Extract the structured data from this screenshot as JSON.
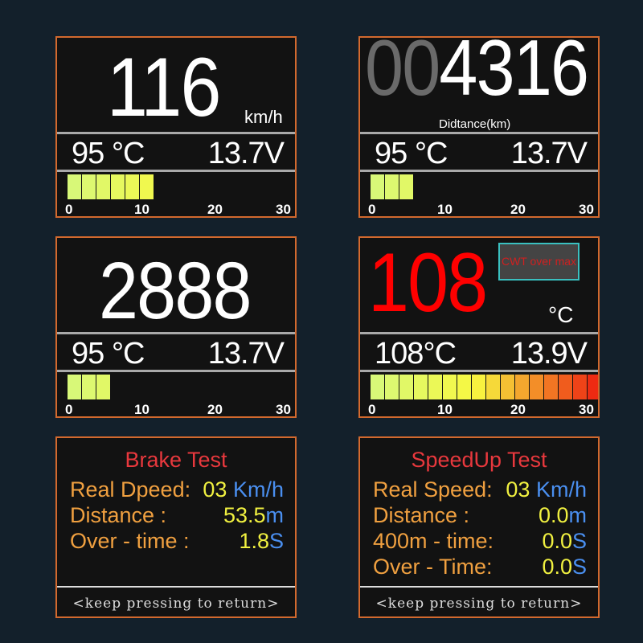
{
  "panels": [
    {
      "main": "116",
      "unit": "km/h",
      "temp": "95 °C",
      "volt": "13.7V",
      "bar_value": 6,
      "bar_segments_max": 16,
      "ticks": [
        "0",
        "10",
        "20",
        "30"
      ]
    },
    {
      "main_dim": "00",
      "main": "4316",
      "unit": "Didtance(km)",
      "temp": "95 °C",
      "volt": "13.7V",
      "bar_value": 3,
      "ticks": [
        "0",
        "10",
        "20",
        "30"
      ]
    },
    {
      "main": "2888",
      "temp": "95 °C",
      "volt": "13.7V",
      "bar_value": 3,
      "ticks": [
        "0",
        "10",
        "20",
        "30"
      ]
    },
    {
      "main": "108",
      "unit": "°C",
      "warning": "CWT over max",
      "temp": "108°C",
      "volt": "13.9V",
      "bar_value": 16,
      "ticks": [
        "0",
        "10",
        "20",
        "30"
      ]
    }
  ],
  "brake": {
    "title": "Brake Test",
    "rows": [
      {
        "label": "Real Dpeed:",
        "value": "03",
        "unit": "Km/h"
      },
      {
        "label": "Distance    :",
        "value": "53.5",
        "unit": "m"
      },
      {
        "label": "Over - time :",
        "value": "1.8",
        "unit": "S"
      }
    ],
    "footer": "<keep pressing to return>"
  },
  "speedup": {
    "title": "SpeedUp Test",
    "rows": [
      {
        "label": "Real Speed:",
        "value": "03",
        "unit": "Km/h"
      },
      {
        "label": "Distance    :",
        "value": "0.0",
        "unit": "m"
      },
      {
        "label": "400m - time:",
        "value": "0.0",
        "unit": "S"
      },
      {
        "label": "Over - Time:",
        "value": "0.0",
        "unit": "S"
      }
    ],
    "footer": "<keep pressing to return>"
  },
  "colors": {
    "frame": "#d2692e",
    "bar_start": "#d8f878",
    "bar_mid": "#f8f840",
    "bar_end": "#ee2a12",
    "warning_text": "#d02020",
    "main_alarm": "#ff0000"
  }
}
